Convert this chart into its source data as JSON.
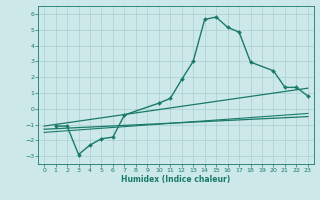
{
  "xlabel": "Humidex (Indice chaleur)",
  "ylabel": "",
  "background_color": "#cce8e8",
  "grid_color": "#aacfcf",
  "line_color": "#1a7a6a",
  "xlim": [
    -0.5,
    23.5
  ],
  "ylim": [
    -3.5,
    6.5
  ],
  "xticks": [
    0,
    1,
    2,
    3,
    4,
    5,
    6,
    7,
    8,
    9,
    10,
    11,
    12,
    13,
    14,
    15,
    16,
    17,
    18,
    19,
    20,
    21,
    22,
    23
  ],
  "yticks": [
    -3,
    -2,
    -1,
    0,
    1,
    2,
    3,
    4,
    5,
    6
  ],
  "series": [
    {
      "x": [
        1,
        2,
        3,
        4,
        5,
        6,
        7,
        10,
        11,
        12,
        13,
        14,
        15,
        16,
        17,
        18,
        20,
        21,
        22,
        23
      ],
      "y": [
        -1.1,
        -1.1,
        -2.9,
        -2.3,
        -1.9,
        -1.8,
        -0.4,
        0.35,
        0.65,
        1.85,
        3.0,
        5.65,
        5.8,
        5.15,
        4.85,
        2.95,
        2.4,
        1.35,
        1.35,
        0.8
      ],
      "marker": "D",
      "markersize": 2.0,
      "linewidth": 1.0
    },
    {
      "x": [
        0,
        23
      ],
      "y": [
        -1.1,
        1.3
      ],
      "marker": null,
      "markersize": 0,
      "linewidth": 0.9
    },
    {
      "x": [
        0,
        23
      ],
      "y": [
        -1.3,
        -0.5
      ],
      "marker": null,
      "markersize": 0,
      "linewidth": 0.9
    },
    {
      "x": [
        0,
        23
      ],
      "y": [
        -1.5,
        -0.3
      ],
      "marker": null,
      "markersize": 0,
      "linewidth": 0.8
    }
  ]
}
